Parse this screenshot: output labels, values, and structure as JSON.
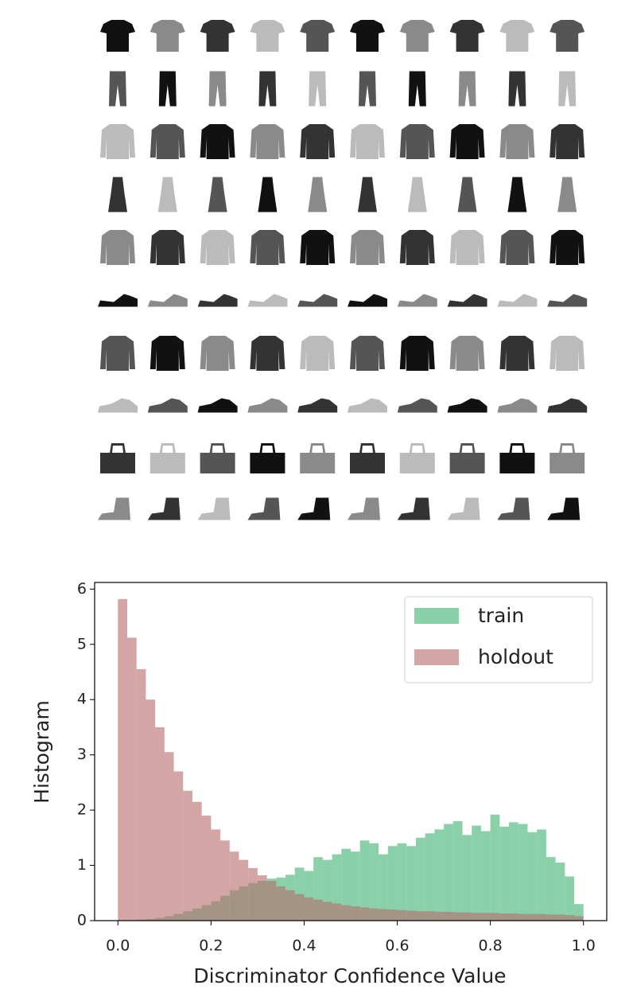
{
  "chart_data": {
    "type": "histogram",
    "xlabel": "Discriminator Confidence Value",
    "ylabel": "Histogram",
    "bins": [
      0,
      0.02,
      0.04,
      0.06,
      0.08,
      0.1,
      0.12,
      0.14,
      0.16,
      0.18,
      0.2,
      0.22,
      0.24,
      0.26,
      0.28,
      0.3,
      0.32,
      0.34,
      0.36,
      0.38,
      0.4,
      0.42,
      0.44,
      0.46,
      0.48,
      0.5,
      0.52,
      0.54,
      0.56,
      0.58,
      0.6,
      0.62,
      0.64,
      0.66,
      0.68,
      0.7,
      0.72,
      0.74,
      0.76,
      0.78,
      0.8,
      0.82,
      0.84,
      0.86,
      0.88,
      0.9,
      0.92,
      0.94,
      0.96,
      0.98,
      1
    ],
    "series": [
      {
        "name": "train",
        "color": "#3cb371",
        "values": [
          0.0,
          0.01,
          0.02,
          0.03,
          0.05,
          0.08,
          0.12,
          0.17,
          0.22,
          0.28,
          0.35,
          0.45,
          0.55,
          0.62,
          0.68,
          0.72,
          0.76,
          0.78,
          0.83,
          0.96,
          0.9,
          1.15,
          1.1,
          1.2,
          1.3,
          1.25,
          1.45,
          1.4,
          1.2,
          1.35,
          1.4,
          1.35,
          1.5,
          1.58,
          1.65,
          1.75,
          1.8,
          1.55,
          1.72,
          1.62,
          1.92,
          1.7,
          1.78,
          1.75,
          1.6,
          1.65,
          1.15,
          1.05,
          0.8,
          0.3
        ]
      },
      {
        "name": "holdout",
        "color": "#b76969",
        "values": [
          5.82,
          5.12,
          4.55,
          4.0,
          3.5,
          3.05,
          2.7,
          2.35,
          2.15,
          1.9,
          1.65,
          1.45,
          1.25,
          1.1,
          0.95,
          0.82,
          0.72,
          0.62,
          0.55,
          0.48,
          0.42,
          0.38,
          0.34,
          0.31,
          0.28,
          0.26,
          0.24,
          0.22,
          0.21,
          0.2,
          0.19,
          0.18,
          0.17,
          0.17,
          0.16,
          0.16,
          0.15,
          0.15,
          0.14,
          0.14,
          0.14,
          0.13,
          0.13,
          0.12,
          0.12,
          0.12,
          0.11,
          0.11,
          0.1,
          0.08
        ]
      }
    ],
    "alpha": 0.6,
    "xlim": [
      -0.05,
      1.05
    ],
    "ylim": [
      0,
      6.12
    ],
    "xticks": [
      {
        "value": 0,
        "label": "0.0"
      },
      0.2,
      0.4,
      0.6,
      0.8,
      {
        "value": 1,
        "label": "1.0"
      }
    ],
    "yticks": [
      0,
      1,
      2,
      3,
      4,
      5,
      6
    ],
    "legend": "upper right"
  }
}
